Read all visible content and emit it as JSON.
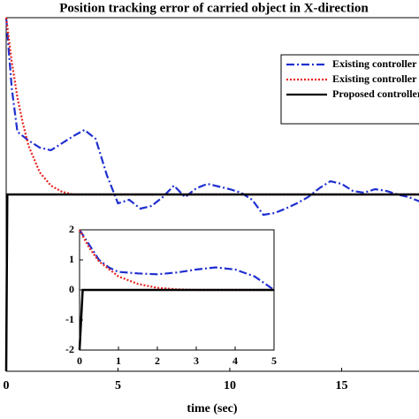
{
  "chart_data": [
    {
      "type": "line",
      "title": "Position tracking error of carried object in X-direction",
      "x_label": "time (sec)",
      "xlim": [
        0,
        18.5
      ],
      "ylim": [
        -2,
        2
      ],
      "xticks": [
        0,
        5,
        10,
        15
      ],
      "grid": false,
      "legend": "upper right",
      "series": [
        {
          "name": "Existing controller",
          "color": "#1f2fd0",
          "style": "dashdot",
          "x": [
            0,
            0.25,
            0.5,
            1,
            1.5,
            2,
            2.5,
            3,
            3.5,
            4,
            4.5,
            5,
            5.5,
            6,
            6.5,
            7,
            7.5,
            8,
            8.5,
            9,
            9.5,
            10,
            10.5,
            11,
            11.5,
            12,
            12.5,
            13,
            13.5,
            14,
            14.5,
            15,
            15.5,
            16,
            16.5,
            17,
            17.5,
            18,
            18.5
          ],
          "values": [
            2,
            1.2,
            0.71,
            0.61,
            0.53,
            0.5,
            0.58,
            0.66,
            0.73,
            0.63,
            0.22,
            -0.1,
            -0.06,
            -0.16,
            -0.13,
            -0.03,
            0.1,
            -0.03,
            0.07,
            0.12,
            0.09,
            0.06,
            0.02,
            -0.06,
            -0.23,
            -0.21,
            -0.16,
            -0.1,
            -0.03,
            0.07,
            0.15,
            0.12,
            0.04,
            0.02,
            0.06,
            0.04,
            0,
            -0.03,
            -0.08
          ]
        },
        {
          "name": "Existing controller",
          "color": "#e8201c",
          "style": "dotted",
          "x": [
            0,
            0.25,
            0.5,
            0.75,
            1,
            1.5,
            2,
            2.5,
            3,
            18.5
          ],
          "values": [
            2,
            1.5,
            1.1,
            0.8,
            0.55,
            0.25,
            0.1,
            0.03,
            0,
            0
          ]
        },
        {
          "name": "Proposed controller",
          "color": "#000000",
          "style": "solid",
          "x": [
            0,
            0.05,
            18.5
          ],
          "values": [
            -2,
            0,
            0
          ]
        }
      ]
    },
    {
      "type": "line",
      "xlim": [
        0,
        5
      ],
      "ylim": [
        -2,
        2
      ],
      "xticks": [
        0,
        1,
        2,
        3,
        4,
        5
      ],
      "yticks": [
        -2,
        -1,
        0,
        1,
        2
      ],
      "series": [
        {
          "color": "#1f2fd0",
          "style": "dashdot",
          "x": [
            0,
            0.25,
            0.5,
            0.75,
            1,
            1.5,
            2,
            2.5,
            3,
            3.5,
            4,
            4.5,
            5
          ],
          "values": [
            2,
            1.5,
            1,
            0.75,
            0.6,
            0.55,
            0.52,
            0.58,
            0.68,
            0.75,
            0.68,
            0.45,
            0
          ]
        },
        {
          "color": "#e8201c",
          "style": "dotted",
          "x": [
            0,
            0.25,
            0.5,
            1,
            1.5,
            2,
            2.5,
            3,
            5
          ],
          "values": [
            2,
            1.4,
            0.95,
            0.45,
            0.2,
            0.07,
            0.02,
            0,
            0
          ]
        },
        {
          "color": "#000000",
          "style": "solid",
          "x": [
            0,
            0.08,
            5
          ],
          "values": [
            -2,
            0,
            0
          ]
        }
      ]
    }
  ]
}
